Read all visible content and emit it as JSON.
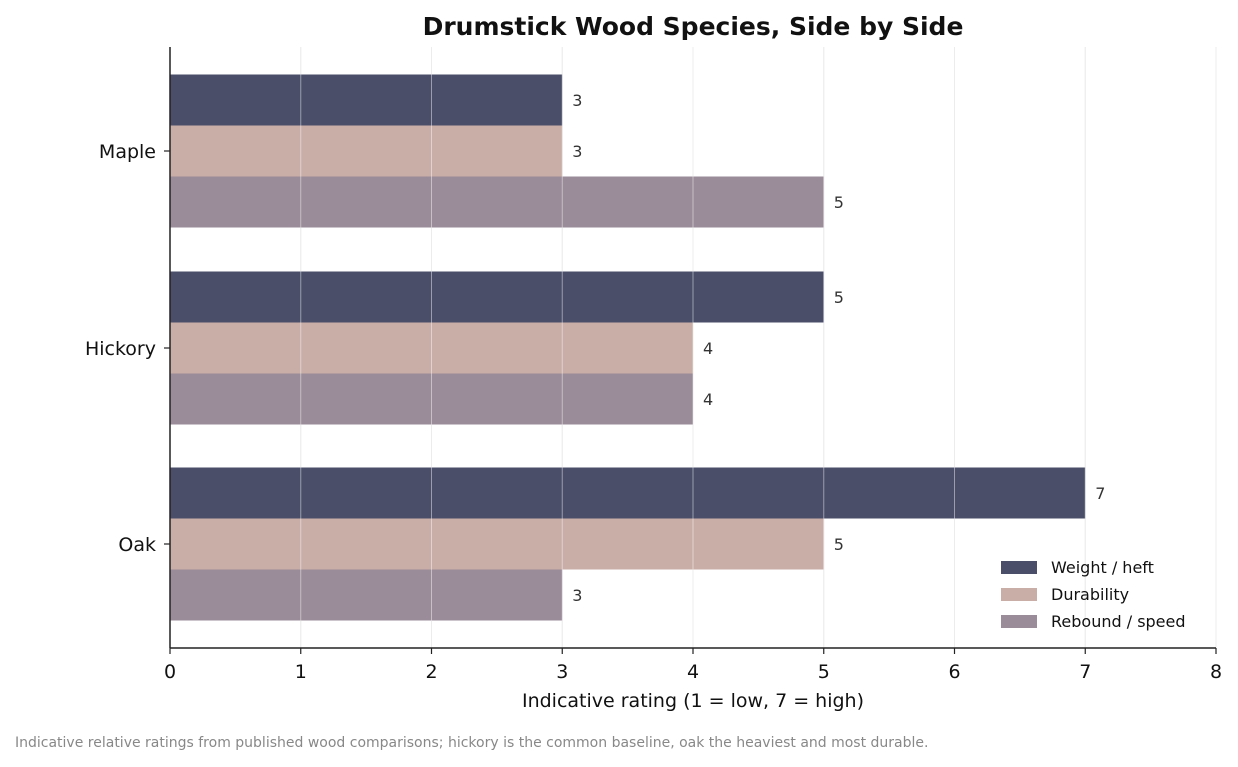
{
  "chart_data": {
    "type": "bar",
    "orientation": "horizontal",
    "title": "Drumstick Wood Species, Side by Side",
    "xlabel": "Indicative rating (1 = low, 7 = high)",
    "ylabel": "",
    "categories": [
      "Maple",
      "Hickory",
      "Oak"
    ],
    "series": [
      {
        "name": "Weight / heft",
        "color": "#4a4e69",
        "values": [
          3,
          5,
          7
        ]
      },
      {
        "name": "Durability",
        "color": "#c9ada7",
        "values": [
          3,
          4,
          5
        ]
      },
      {
        "name": "Rebound / speed",
        "color": "#9a8c98",
        "values": [
          5,
          4,
          3
        ]
      }
    ],
    "xlim": [
      0,
      8
    ],
    "xticks": [
      "0",
      "1",
      "2",
      "3",
      "4",
      "5",
      "6",
      "7",
      "8"
    ],
    "grid": "vertical",
    "legend": "bottom-right"
  },
  "footnote": "Indicative relative ratings from published wood comparisons; hickory is the common baseline, oak the heaviest and most durable."
}
